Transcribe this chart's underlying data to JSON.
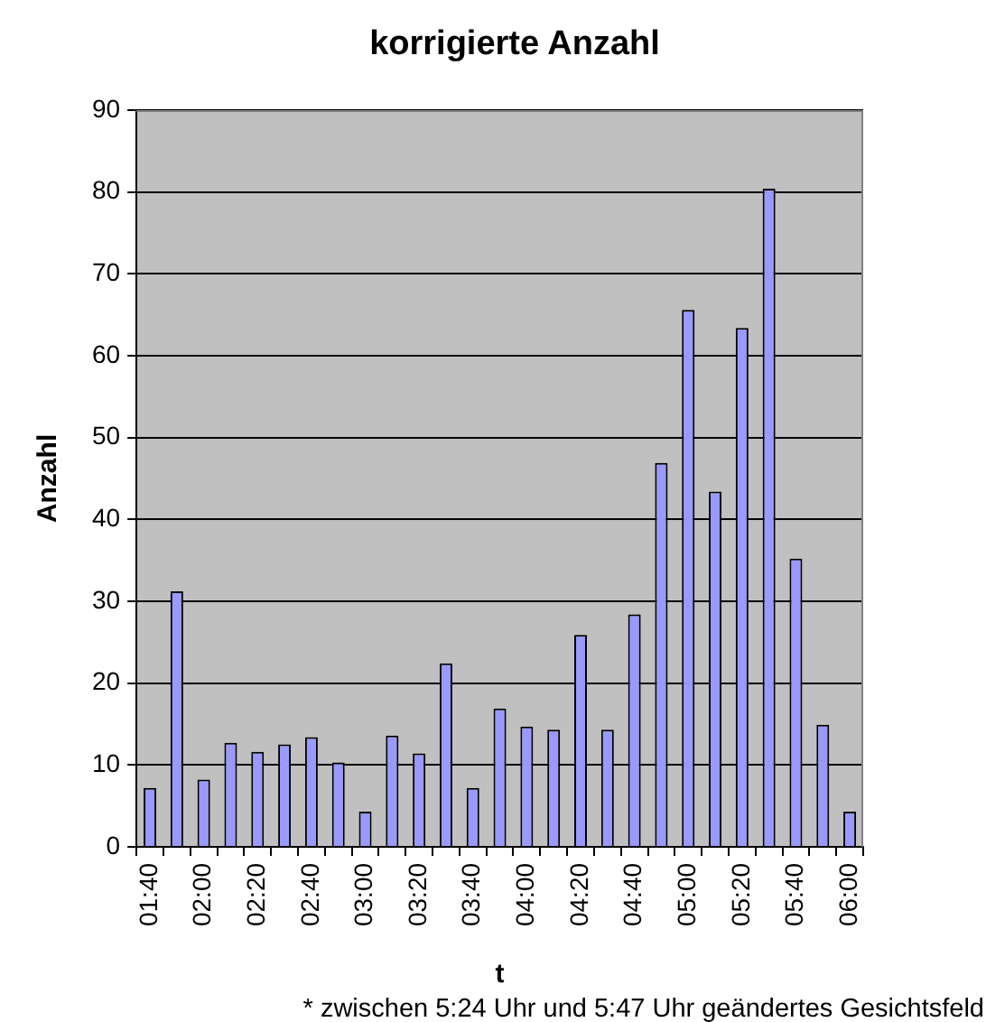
{
  "chart_data": {
    "type": "bar",
    "title": "korrigierte Anzahl",
    "xlabel": "t",
    "ylabel": "Anzahl",
    "categories": [
      "01:40",
      null,
      "02:00",
      null,
      "02:20",
      null,
      "02:40",
      null,
      "03:00",
      null,
      "03:20",
      null,
      "03:40",
      null,
      "04:00",
      null,
      "04:20",
      null,
      "04:40",
      null,
      "05:00",
      null,
      "05:20",
      null,
      "05:40",
      null,
      "06:00"
    ],
    "values": [
      7.2,
      31.2,
      8.2,
      12.7,
      11.6,
      12.5,
      13.4,
      10.3,
      4.3,
      13.6,
      11.4,
      22.4,
      7.2,
      16.9,
      14.7,
      14.3,
      25.9,
      14.3,
      28.4,
      46.9,
      65.6,
      43.4,
      63.4,
      80.4,
      35.2,
      14.9,
      4.3
    ],
    "color": "#9999ff",
    "ylim": [
      0,
      90
    ],
    "yticks": [
      0,
      10,
      20,
      30,
      40,
      50,
      60,
      70,
      80,
      90
    ],
    "grid": "y",
    "annotations": [
      "* zwischen 5:24 Uhr und 5:47 Uhr geändertes Gesichtsfeld"
    ]
  }
}
